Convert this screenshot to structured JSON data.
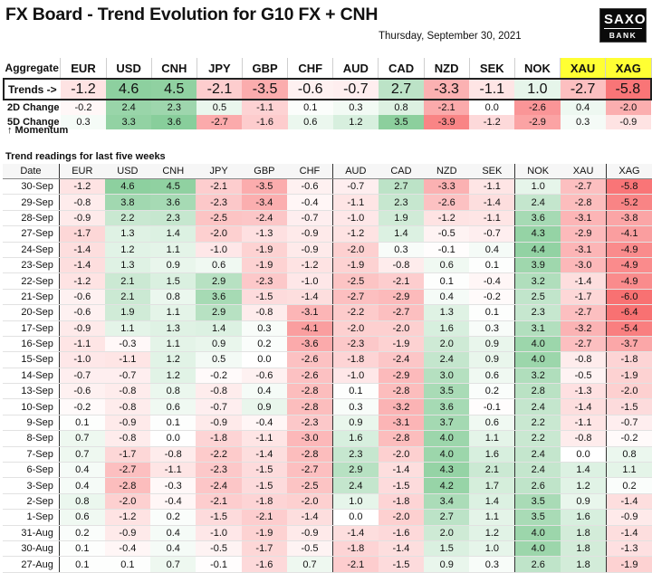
{
  "header": {
    "title": "FX Board - Trend Evolution for G10 FX + CNH",
    "date": "Thursday, September 30, 2021",
    "logo_top": "SAXO",
    "logo_bottom": "BANK"
  },
  "aggregate": {
    "label": "Aggregate",
    "currencies": [
      "EUR",
      "USD",
      "CNH",
      "JPY",
      "GBP",
      "CHF",
      "AUD",
      "CAD",
      "NZD",
      "SEK",
      "NOK",
      "XAU",
      "XAG"
    ],
    "highlight_currencies": [
      "XAU",
      "XAG"
    ],
    "highlight_color": "#ffff33",
    "trends_label": "Trends ->",
    "trends": [
      "-1.2",
      "4.6",
      "4.5",
      "-2.1",
      "-3.5",
      "-0.6",
      "-0.7",
      "2.7",
      "-3.3",
      "-1.1",
      "1.0",
      "-2.7",
      "-5.8"
    ],
    "change2d_label": "2D Change",
    "change2d": [
      "-0.2",
      "2.4",
      "2.3",
      "0.5",
      "-1.1",
      "0.1",
      "0.3",
      "0.8",
      "-2.1",
      "0.0",
      "-2.6",
      "0.4",
      "-2.0"
    ],
    "change5d_label": "5D Change",
    "change5d": [
      "0.3",
      "3.3",
      "3.6",
      "-2.7",
      "-1.6",
      "0.6",
      "1.2",
      "3.5",
      "-3.9",
      "-1.2",
      "-2.9",
      "0.3",
      "-0.9"
    ],
    "momentum_label": "↑ Momentum"
  },
  "history": {
    "section_title": "Trend readings for last five weeks",
    "date_header": "Date",
    "currencies": [
      "EUR",
      "USD",
      "CNH",
      "JPY",
      "GBP",
      "CHF",
      "AUD",
      "CAD",
      "NZD",
      "SEK",
      "NOK",
      "XAU",
      "XAG"
    ],
    "rows": [
      {
        "date": "30-Sep",
        "values": [
          "-1.2",
          "4.6",
          "4.5",
          "-2.1",
          "-3.5",
          "-0.6",
          "-0.7",
          "2.7",
          "-3.3",
          "-1.1",
          "1.0",
          "-2.7",
          "-5.8"
        ]
      },
      {
        "date": "29-Sep",
        "values": [
          "-0.8",
          "3.8",
          "3.6",
          "-2.3",
          "-3.4",
          "-0.4",
          "-1.1",
          "2.3",
          "-2.6",
          "-1.4",
          "2.4",
          "-2.8",
          "-5.2"
        ]
      },
      {
        "date": "28-Sep",
        "values": [
          "-0.9",
          "2.2",
          "2.3",
          "-2.5",
          "-2.4",
          "-0.7",
          "-1.0",
          "1.9",
          "-1.2",
          "-1.1",
          "3.6",
          "-3.1",
          "-3.8"
        ]
      },
      {
        "date": "27-Sep",
        "values": [
          "-1.7",
          "1.3",
          "1.4",
          "-2.0",
          "-1.3",
          "-0.9",
          "-1.2",
          "1.4",
          "-0.5",
          "-0.7",
          "4.3",
          "-2.9",
          "-4.1"
        ]
      },
      {
        "date": "24-Sep",
        "values": [
          "-1.4",
          "1.2",
          "1.1",
          "-1.0",
          "-1.9",
          "-0.9",
          "-2.0",
          "0.3",
          "-0.1",
          "0.4",
          "4.4",
          "-3.1",
          "-4.9"
        ]
      },
      {
        "date": "23-Sep",
        "values": [
          "-1.4",
          "1.3",
          "0.9",
          "0.6",
          "-1.9",
          "-1.2",
          "-1.9",
          "-0.8",
          "0.6",
          "0.1",
          "3.9",
          "-3.0",
          "-4.9"
        ]
      },
      {
        "date": "22-Sep",
        "values": [
          "-1.2",
          "2.1",
          "1.5",
          "2.9",
          "-2.3",
          "-1.0",
          "-2.5",
          "-2.1",
          "0.1",
          "-0.4",
          "3.2",
          "-1.4",
          "-4.9"
        ]
      },
      {
        "date": "21-Sep",
        "values": [
          "-0.6",
          "2.1",
          "0.8",
          "3.6",
          "-1.5",
          "-1.4",
          "-2.7",
          "-2.9",
          "0.4",
          "-0.2",
          "2.5",
          "-1.7",
          "-6.0"
        ]
      },
      {
        "date": "20-Sep",
        "values": [
          "-0.6",
          "1.9",
          "1.1",
          "2.9",
          "-0.8",
          "-3.1",
          "-2.2",
          "-2.7",
          "1.3",
          "0.1",
          "2.3",
          "-2.7",
          "-6.4"
        ]
      },
      {
        "date": "17-Sep",
        "values": [
          "-0.9",
          "1.1",
          "1.3",
          "1.4",
          "0.3",
          "-4.1",
          "-2.0",
          "-2.0",
          "1.6",
          "0.3",
          "3.1",
          "-3.2",
          "-5.4"
        ]
      },
      {
        "date": "16-Sep",
        "values": [
          "-1.1",
          "-0.3",
          "1.1",
          "0.9",
          "0.2",
          "-3.6",
          "-2.3",
          "-1.9",
          "2.0",
          "0.9",
          "4.0",
          "-2.7",
          "-3.7"
        ]
      },
      {
        "date": "15-Sep",
        "values": [
          "-1.0",
          "-1.1",
          "1.2",
          "0.5",
          "0.0",
          "-2.6",
          "-1.8",
          "-2.4",
          "2.4",
          "0.9",
          "4.0",
          "-0.8",
          "-1.8"
        ]
      },
      {
        "date": "14-Sep",
        "values": [
          "-0.7",
          "-0.7",
          "1.2",
          "-0.2",
          "-0.6",
          "-2.6",
          "-1.0",
          "-2.9",
          "3.0",
          "0.6",
          "3.2",
          "-0.5",
          "-1.9"
        ]
      },
      {
        "date": "13-Sep",
        "values": [
          "-0.6",
          "-0.8",
          "0.8",
          "-0.8",
          "0.4",
          "-2.8",
          "0.1",
          "-2.8",
          "3.5",
          "0.2",
          "2.8",
          "-1.3",
          "-2.0"
        ]
      },
      {
        "date": "10-Sep",
        "values": [
          "-0.2",
          "-0.8",
          "0.6",
          "-0.7",
          "0.9",
          "-2.8",
          "0.3",
          "-3.2",
          "3.6",
          "-0.1",
          "2.4",
          "-1.4",
          "-1.5"
        ]
      },
      {
        "date": "9-Sep",
        "values": [
          "0.1",
          "-0.9",
          "0.1",
          "-0.9",
          "-0.4",
          "-2.3",
          "0.9",
          "-3.1",
          "3.7",
          "0.6",
          "2.2",
          "-1.1",
          "-0.7"
        ]
      },
      {
        "date": "8-Sep",
        "values": [
          "0.7",
          "-0.8",
          "0.0",
          "-1.8",
          "-1.1",
          "-3.0",
          "1.6",
          "-2.8",
          "4.0",
          "1.1",
          "2.2",
          "-0.8",
          "-0.2"
        ]
      },
      {
        "date": "7-Sep",
        "values": [
          "0.7",
          "-1.7",
          "-0.8",
          "-2.2",
          "-1.4",
          "-2.8",
          "2.3",
          "-2.0",
          "4.0",
          "1.6",
          "2.4",
          "0.0",
          "0.8"
        ]
      },
      {
        "date": "6-Sep",
        "values": [
          "0.4",
          "-2.7",
          "-1.1",
          "-2.3",
          "-1.5",
          "-2.7",
          "2.9",
          "-1.4",
          "4.3",
          "2.1",
          "2.4",
          "1.4",
          "1.1"
        ]
      },
      {
        "date": "3-Sep",
        "values": [
          "0.4",
          "-2.8",
          "-0.3",
          "-2.4",
          "-1.5",
          "-2.5",
          "2.4",
          "-1.5",
          "4.2",
          "1.7",
          "2.6",
          "1.2",
          "0.2"
        ]
      },
      {
        "date": "2-Sep",
        "values": [
          "0.8",
          "-2.0",
          "-0.4",
          "-2.1",
          "-1.8",
          "-2.0",
          "1.0",
          "-1.8",
          "3.4",
          "1.4",
          "3.5",
          "0.9",
          "-1.4"
        ]
      },
      {
        "date": "1-Sep",
        "values": [
          "0.6",
          "-1.2",
          "0.2",
          "-1.5",
          "-2.1",
          "-1.4",
          "0.0",
          "-2.0",
          "2.7",
          "1.1",
          "3.5",
          "1.6",
          "-0.9"
        ]
      },
      {
        "date": "31-Aug",
        "values": [
          "0.2",
          "-0.9",
          "0.4",
          "-1.0",
          "-1.9",
          "-0.9",
          "-1.4",
          "-1.6",
          "2.0",
          "1.2",
          "4.0",
          "1.8",
          "-1.4"
        ]
      },
      {
        "date": "30-Aug",
        "values": [
          "0.1",
          "-0.4",
          "0.4",
          "-0.5",
          "-1.7",
          "-0.5",
          "-1.8",
          "-1.4",
          "1.5",
          "1.0",
          "4.0",
          "1.8",
          "-1.3"
        ]
      },
      {
        "date": "27-Aug",
        "values": [
          "0.1",
          "0.1",
          "0.7",
          "-0.1",
          "-1.6",
          "0.7",
          "-2.1",
          "-1.5",
          "0.9",
          "0.3",
          "2.6",
          "1.8",
          "-1.9"
        ]
      }
    ]
  },
  "colors": {
    "positive": "#63be7b",
    "negative": "#f8696b",
    "neutral": "#ffffff",
    "gold_header": "#ffff33"
  }
}
